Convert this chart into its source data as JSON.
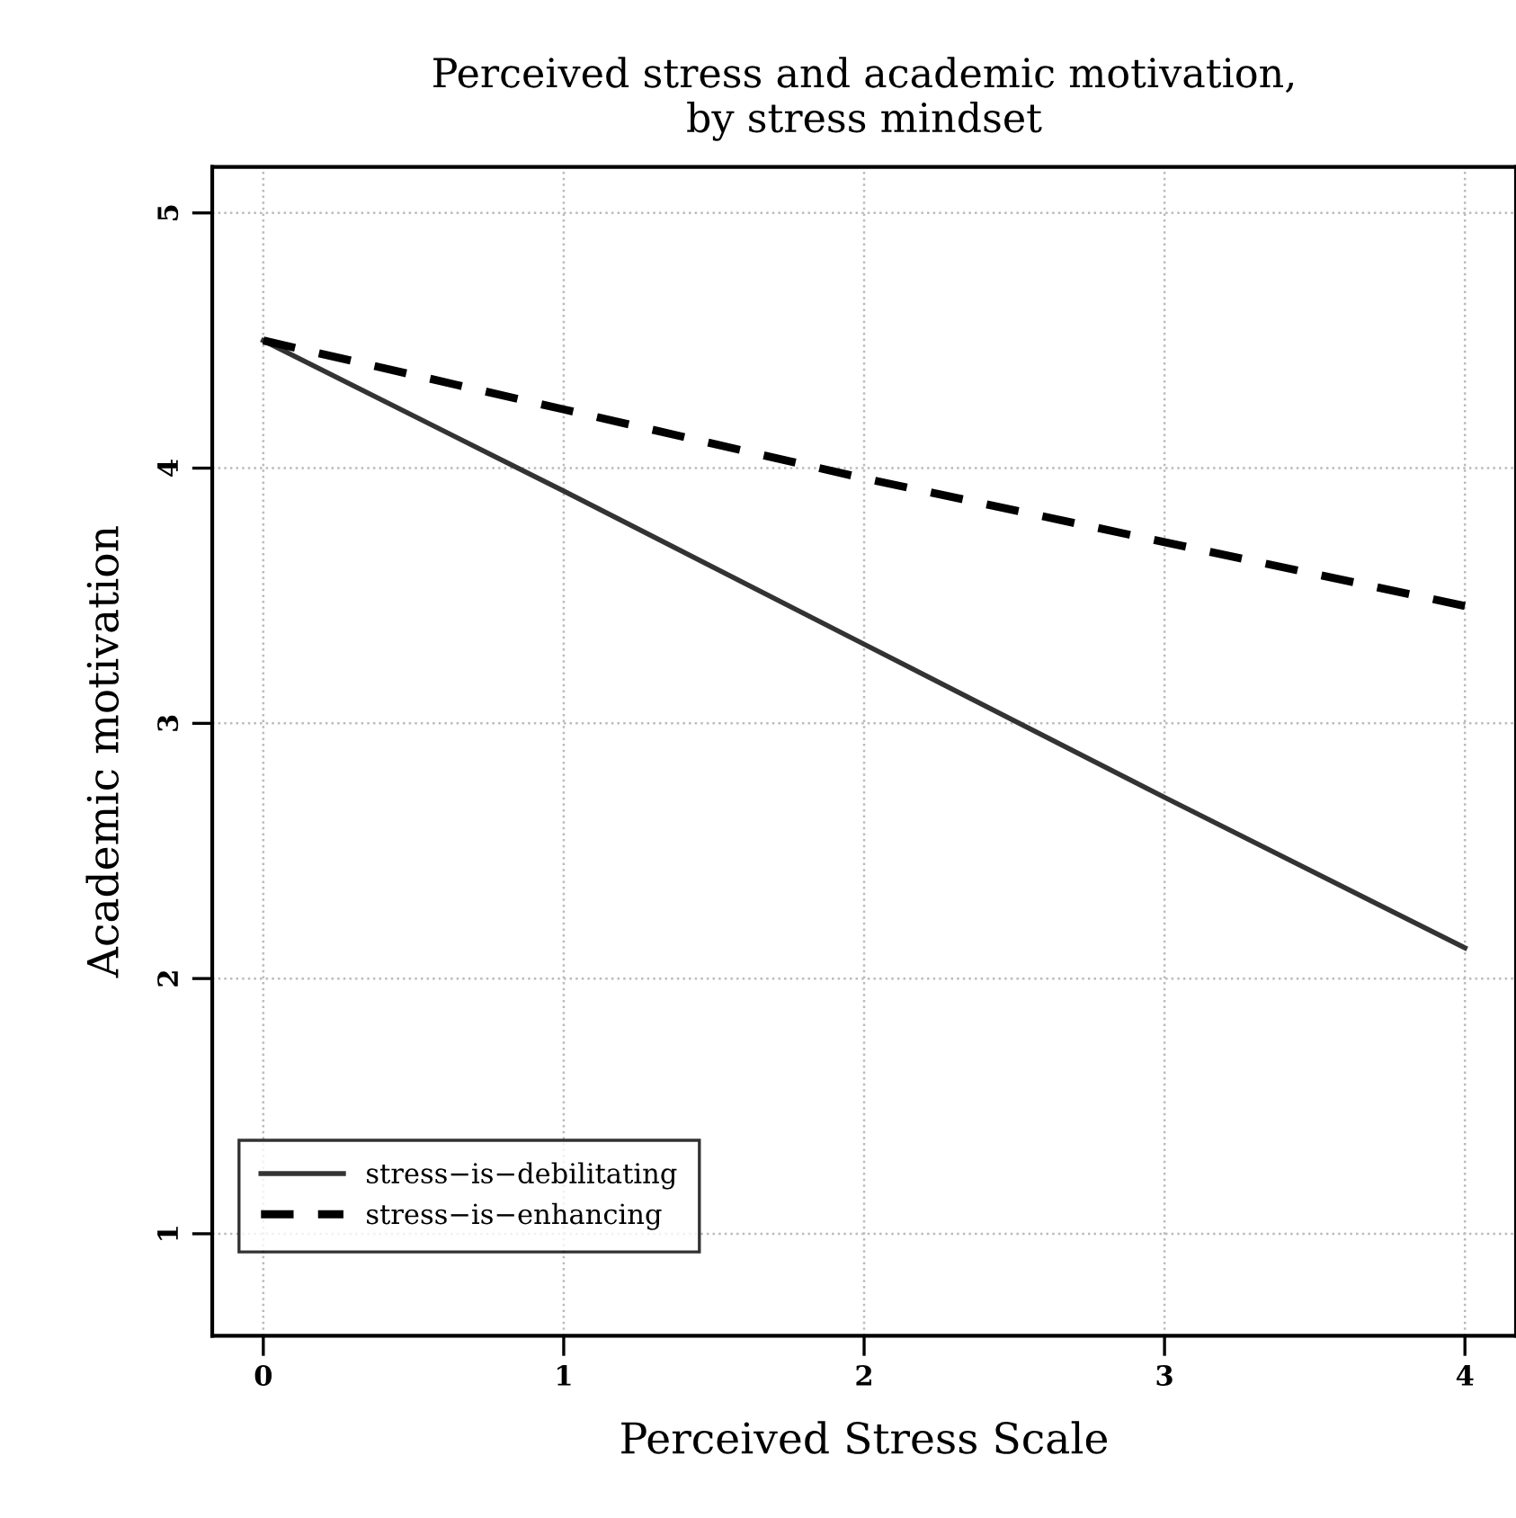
{
  "chart_data": {
    "type": "line",
    "title": "Perceived stress and academic motivation,\nby stress mindset",
    "xlabel": "Perceived Stress Scale",
    "ylabel": "Academic motivation",
    "x": [
      0,
      1,
      2,
      3,
      4
    ],
    "series": [
      {
        "name": "stress−is−debilitating",
        "color": "#333333",
        "line_style": "solid",
        "values": [
          4.5,
          3.91,
          3.31,
          2.71,
          2.12
        ]
      },
      {
        "name": "stress−is−enhancing",
        "color": "#000000",
        "line_style": "dashed",
        "values": [
          4.5,
          4.23,
          3.96,
          3.71,
          3.46
        ]
      }
    ],
    "xlim": [
      -0.17,
      4.17
    ],
    "ylim": [
      0.6,
      5.18
    ],
    "xticks": [
      0,
      1,
      2,
      3,
      4
    ],
    "yticks": [
      1,
      2,
      3,
      4,
      5
    ],
    "grid": true,
    "legend": "bottom left",
    "marker": "none"
  }
}
